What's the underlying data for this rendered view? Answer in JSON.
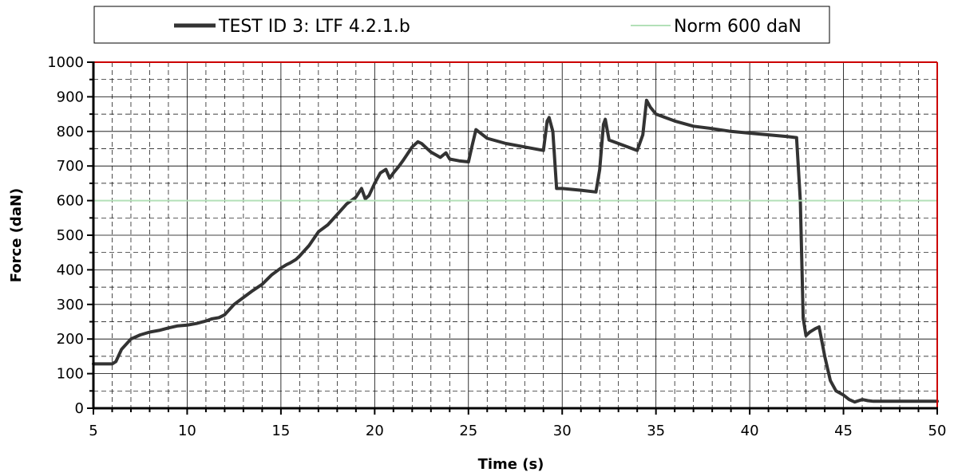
{
  "chart_data": {
    "type": "line",
    "title": "",
    "xlabel": "Time (s)",
    "ylabel": "Force (daN)",
    "xlim": [
      5,
      50
    ],
    "ylim": [
      0,
      1000
    ],
    "x_ticks": [
      5,
      10,
      15,
      20,
      25,
      30,
      35,
      40,
      45,
      50
    ],
    "y_ticks": [
      0,
      100,
      200,
      300,
      400,
      500,
      600,
      700,
      800,
      900,
      1000
    ],
    "x_minor_step": 1,
    "y_minor_step": 50,
    "grid": true,
    "legend_position": "top",
    "plot_border_color": "#cc0000",
    "series": [
      {
        "name": "TEST ID 3: LTF 4.2.1.b",
        "color": "#333333",
        "x": [
          5.0,
          6.0,
          6.2,
          6.5,
          7.0,
          7.5,
          8.0,
          8.5,
          9.0,
          9.5,
          10.0,
          10.5,
          11.0,
          11.3,
          11.7,
          12.0,
          12.5,
          13.0,
          13.5,
          14.0,
          14.5,
          15.0,
          15.3,
          15.5,
          15.8,
          16.0,
          16.5,
          17.0,
          17.5,
          18.0,
          18.5,
          19.0,
          19.3,
          19.5,
          19.7,
          20.0,
          20.3,
          20.6,
          20.8,
          21.0,
          21.3,
          21.5,
          22.0,
          22.3,
          22.5,
          23.0,
          23.5,
          23.8,
          24.0,
          24.5,
          25.0,
          25.2,
          25.4,
          26.0,
          27.0,
          28.0,
          29.0,
          29.2,
          29.3,
          29.5,
          29.7,
          30.0,
          31.0,
          31.8,
          32.0,
          32.2,
          32.3,
          32.5,
          33.0,
          34.0,
          34.3,
          34.5,
          34.7,
          35.0,
          36.0,
          37.0,
          38.0,
          39.0,
          40.0,
          41.0,
          42.0,
          42.5,
          42.7,
          42.85,
          43.0,
          43.2,
          43.5,
          43.7,
          44.0,
          44.3,
          44.6,
          45.0,
          45.3,
          45.6,
          46.0,
          46.3,
          46.6,
          47.0,
          48.0,
          49.0,
          50.0
        ],
        "values": [
          128,
          128,
          135,
          170,
          200,
          212,
          220,
          225,
          232,
          238,
          240,
          245,
          252,
          258,
          262,
          270,
          300,
          320,
          340,
          358,
          385,
          405,
          415,
          420,
          430,
          440,
          470,
          510,
          530,
          560,
          590,
          610,
          635,
          605,
          615,
          650,
          680,
          690,
          665,
          680,
          700,
          715,
          755,
          770,
          765,
          740,
          725,
          738,
          720,
          715,
          712,
          760,
          805,
          780,
          765,
          755,
          745,
          830,
          840,
          800,
          635,
          635,
          630,
          625,
          690,
          820,
          835,
          775,
          765,
          745,
          790,
          890,
          870,
          850,
          830,
          815,
          808,
          800,
          795,
          790,
          785,
          782,
          600,
          260,
          210,
          220,
          230,
          235,
          150,
          80,
          50,
          38,
          25,
          18,
          25,
          22,
          20,
          20,
          20,
          20,
          20
        ]
      },
      {
        "name": "Norm 600 daN",
        "color": "#b3e0b8",
        "x": [
          5,
          50
        ],
        "values": [
          600,
          600
        ]
      }
    ]
  }
}
